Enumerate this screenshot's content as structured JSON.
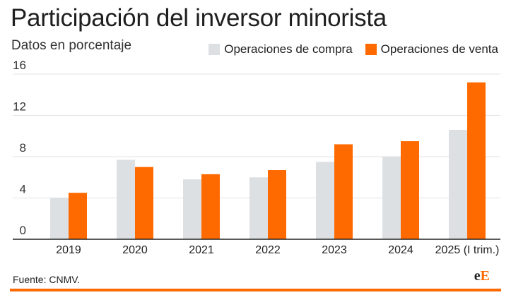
{
  "header": {
    "title": "Participación del inversor minorista",
    "subtitle": "Datos en porcentaje"
  },
  "legend": {
    "compra_label": "Operaciones de compra",
    "venta_label": "Operaciones de venta"
  },
  "footer": {
    "source": "Fuente: CNMV.",
    "logo_e1": "e",
    "logo_e2": "E"
  },
  "colors": {
    "compra": "#dde0e3",
    "venta": "#ff6a00",
    "grid": "#e3e3e3",
    "axis": "#222222",
    "rule": "#ff6a00"
  },
  "chart_data": {
    "type": "bar",
    "title": "Participación del inversor minorista",
    "subtitle": "Datos en porcentaje",
    "categories": [
      "2019",
      "2020",
      "2021",
      "2022",
      "2023",
      "2024",
      "2025 (I trim.)"
    ],
    "series": [
      {
        "name": "Operaciones de compra",
        "values": [
          4.0,
          7.7,
          5.8,
          6.0,
          7.5,
          8.0,
          10.6
        ]
      },
      {
        "name": "Operaciones de venta",
        "values": [
          4.5,
          7.0,
          6.3,
          6.7,
          9.2,
          9.5,
          15.2
        ]
      }
    ],
    "yticks": [
      0,
      4,
      8,
      12,
      16
    ],
    "ylim": [
      0,
      16
    ],
    "grid": true,
    "legend_position": "top-right",
    "xlabel": "",
    "ylabel": ""
  }
}
